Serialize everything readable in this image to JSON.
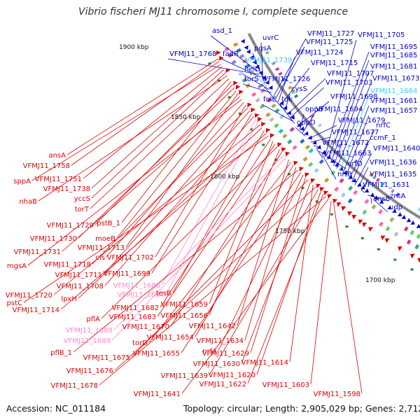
{
  "title": "Vibrio fischeri MJ11 chromosome I, complete sequence",
  "footer": {
    "accession": "Accession: NC_011184",
    "summary": "Topology: circular; Length: 2,905,029 bp; Genes: 2,712"
  },
  "colors": {
    "forward": "#0000cc",
    "reverse": "#e00000",
    "pseudo_forward": "#33ccff",
    "pseudo_reverse": "#ff88cc",
    "backbone": "#888888",
    "tick": "#228822"
  },
  "kbp_ticks": [
    "1900 kbp",
    "1850 kbp",
    "1800 kbp",
    "1750 kbp",
    "1700 kbp"
  ],
  "forward_labels": [
    "asd_1",
    "VFMJ11_1768",
    "fadR",
    "uvrC",
    "pgsA",
    "VFMJ11_1739",
    "helD",
    "torS",
    "VFMJ11_1727",
    "VFMJ11_1725",
    "VFMJ11_1724",
    "VFMJ11_1715",
    "VFMJ11_1726",
    "cysS",
    "VFMJ11_1707",
    "VFMJ11_1703",
    "folE",
    "tdk",
    "VFMJ11_1698",
    "oppB",
    "VFMJ11_1694",
    "oppD",
    "VFMJ11_1679",
    "VFMJ11_1677",
    "VFMJ11_1672",
    "VFMJ11_1663",
    "nrfD",
    "nrfB",
    "VFMJ11_1705",
    "VFMJ11_1695",
    "VFMJ11_1685",
    "VFMJ11_1681",
    "VFMJ11_1673",
    "VFMJ11_1664",
    "VFMJ11_1661",
    "VFMJ11_1657",
    "nrfC",
    "ccmF_1",
    "VFMJ11_1640",
    "VFMJ11_1636",
    "VFMJ11_1635",
    "VFMJ11_1631",
    "zntA",
    "ansB",
    "udp"
  ],
  "reverse_labels": [
    "ansA",
    "VFMJ11_1758",
    "sppA",
    "VFMJ11_1751",
    "VFMJ11_1738",
    "yccS",
    "nhaB",
    "torT",
    "pstB_1",
    "VFMJ11_1729",
    "VFMJ11_1730",
    "moeB",
    "VFMJ11_1713",
    "VFMJ11_1731",
    "mgsA",
    "cls",
    "VFMJ11_1702",
    "VFMJ11_1718",
    "VFMJ11_1711",
    "VFMJ11_1699",
    "VFMJ11_1708",
    "VFMJ11_1686",
    "VFMJ11_1687",
    "VFMJ11_1720",
    "lpxH",
    "tesB",
    "VFMJ11_1714",
    "pstC",
    "VFMJ11_1682",
    "VFMJ11_1659",
    "VFMJ11_1683",
    "pflA",
    "VFMJ11_1656",
    "VFMJ11_1670",
    "VFMJ11_1688",
    "VFMJ11_1689",
    "VFMJ11_1642",
    "torD",
    "VFMJ11_1654",
    "VFMJ11_1634",
    "pflB_1",
    "VFMJ11_1655",
    "nrfA",
    "VFMJ11_1629",
    "VFMJ11_1675",
    "VFMJ11_1630",
    "VFMJ11_1614",
    "VFMJ11_1676",
    "VFMJ11_1639",
    "VFMJ11_1620",
    "VFMJ11_1622",
    "VFMJ11_1678",
    "VFMJ11_1641",
    "VFMJ11_1603",
    "VFMJ11_1598"
  ],
  "pseudo_labels": [
    "VFMJ11_1739",
    "VFMJ11_1664",
    "VFMJ11_1686",
    "VFMJ11_1687",
    "VFMJ11_1688",
    "VFMJ11_1689"
  ]
}
